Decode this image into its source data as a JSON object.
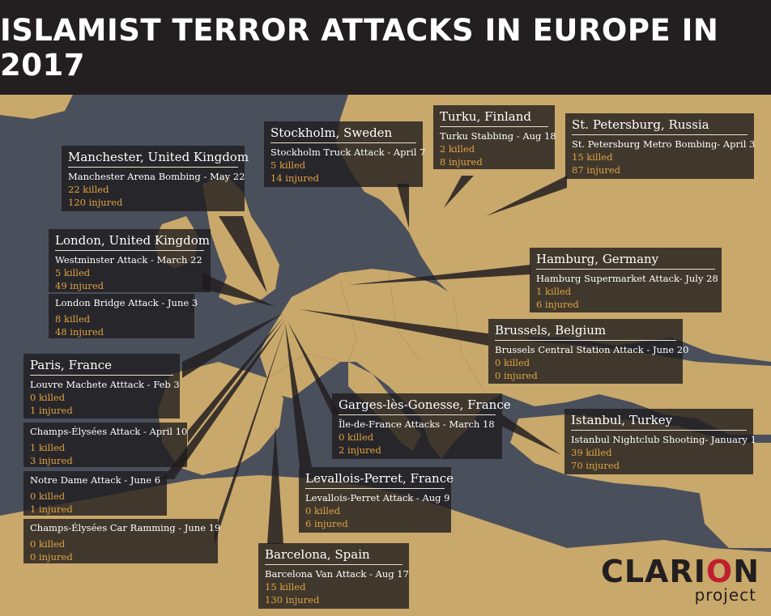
{
  "header": {
    "title": "ISLAMIST TERROR ATTACKS IN EUROPE IN 2017"
  },
  "logo": {
    "text_pre": "CLARI",
    "text_o": "O",
    "text_post": "N",
    "subtitle": "project"
  },
  "colors": {
    "land": "#c9a86b",
    "sea": "#4a4f5c",
    "header": "#231f20",
    "accent": "#e0a341",
    "brand_red": "#c01f2f"
  },
  "locations": {
    "manchester": {
      "title": "Manchester, United Kingdom",
      "attacks": [
        {
          "name": "Manchester Arena Bombing - May 22",
          "killed": "22 killed",
          "injured": "120 injured"
        }
      ]
    },
    "london": {
      "title": "London, United Kingdom",
      "attacks": [
        {
          "name": "Westminster Attack - March 22",
          "killed": "5 killed",
          "injured": "49 injured"
        },
        {
          "name": "London Bridge Attack - June 3",
          "killed": "8 killed",
          "injured": "48 injured"
        }
      ]
    },
    "paris": {
      "title": "Paris, France",
      "attacks": [
        {
          "name": "Louvre Machete Atttack - Feb 3",
          "killed": "0 killed",
          "injured": "1 injured"
        },
        {
          "name": "Champs-Élysées Attack - April 10",
          "killed": "1 killed",
          "injured": "3 injured"
        },
        {
          "name": "Notre Dame Attack - June 6",
          "killed": "0 killed",
          "injured": "1 injured"
        },
        {
          "name": "Champs-Élysées Car Ramming - June 19",
          "killed": "0 killed",
          "injured": "0 injured"
        }
      ]
    },
    "stockholm": {
      "title": "Stockholm, Sweden",
      "attacks": [
        {
          "name": "Stockholm Truck Attack - April 7",
          "killed": "5 killed",
          "injured": "14 injured"
        }
      ]
    },
    "turku": {
      "title": "Turku, Finland",
      "attacks": [
        {
          "name": "Turku Stabbing - Aug 18",
          "killed": "2 killed",
          "injured": "8 injured"
        }
      ]
    },
    "stpetersburg": {
      "title": "St. Petersburg, Russia",
      "attacks": [
        {
          "name": "St. Petersburg Metro Bombing- April 3",
          "killed": "15 killed",
          "injured": "87 injured"
        }
      ]
    },
    "hamburg": {
      "title": "Hamburg, Germany",
      "attacks": [
        {
          "name": "Hamburg Supermarket Attack- July 28",
          "killed": "1 killed",
          "injured": "6 injured"
        }
      ]
    },
    "brussels": {
      "title": "Brussels, Belgium",
      "attacks": [
        {
          "name": "Brussels Central Station Attack - June 20",
          "killed": "0 killed",
          "injured": "0 injured"
        }
      ]
    },
    "garges": {
      "title": "Garges-lès-Gonesse, France",
      "attacks": [
        {
          "name": "Île-de-France Attacks - March 18",
          "killed": "0 killed",
          "injured": "2 injured"
        }
      ]
    },
    "istanbul": {
      "title": "Istanbul, Turkey",
      "attacks": [
        {
          "name": "Istanbul Nightclub Shooting- January 1",
          "killed": "39 killed",
          "injured": "70 injured"
        }
      ]
    },
    "levallois": {
      "title": "Levallois-Perret, France",
      "attacks": [
        {
          "name": "Levallois-Perret Attack - Aug 9",
          "killed": "0 killed",
          "injured": "6 injured"
        }
      ]
    },
    "barcelona": {
      "title": "Barcelona, Spain",
      "attacks": [
        {
          "name": "Barcelona Van Attack - Aug 17",
          "killed": "15 killed",
          "injured": "130 injured"
        }
      ]
    }
  }
}
